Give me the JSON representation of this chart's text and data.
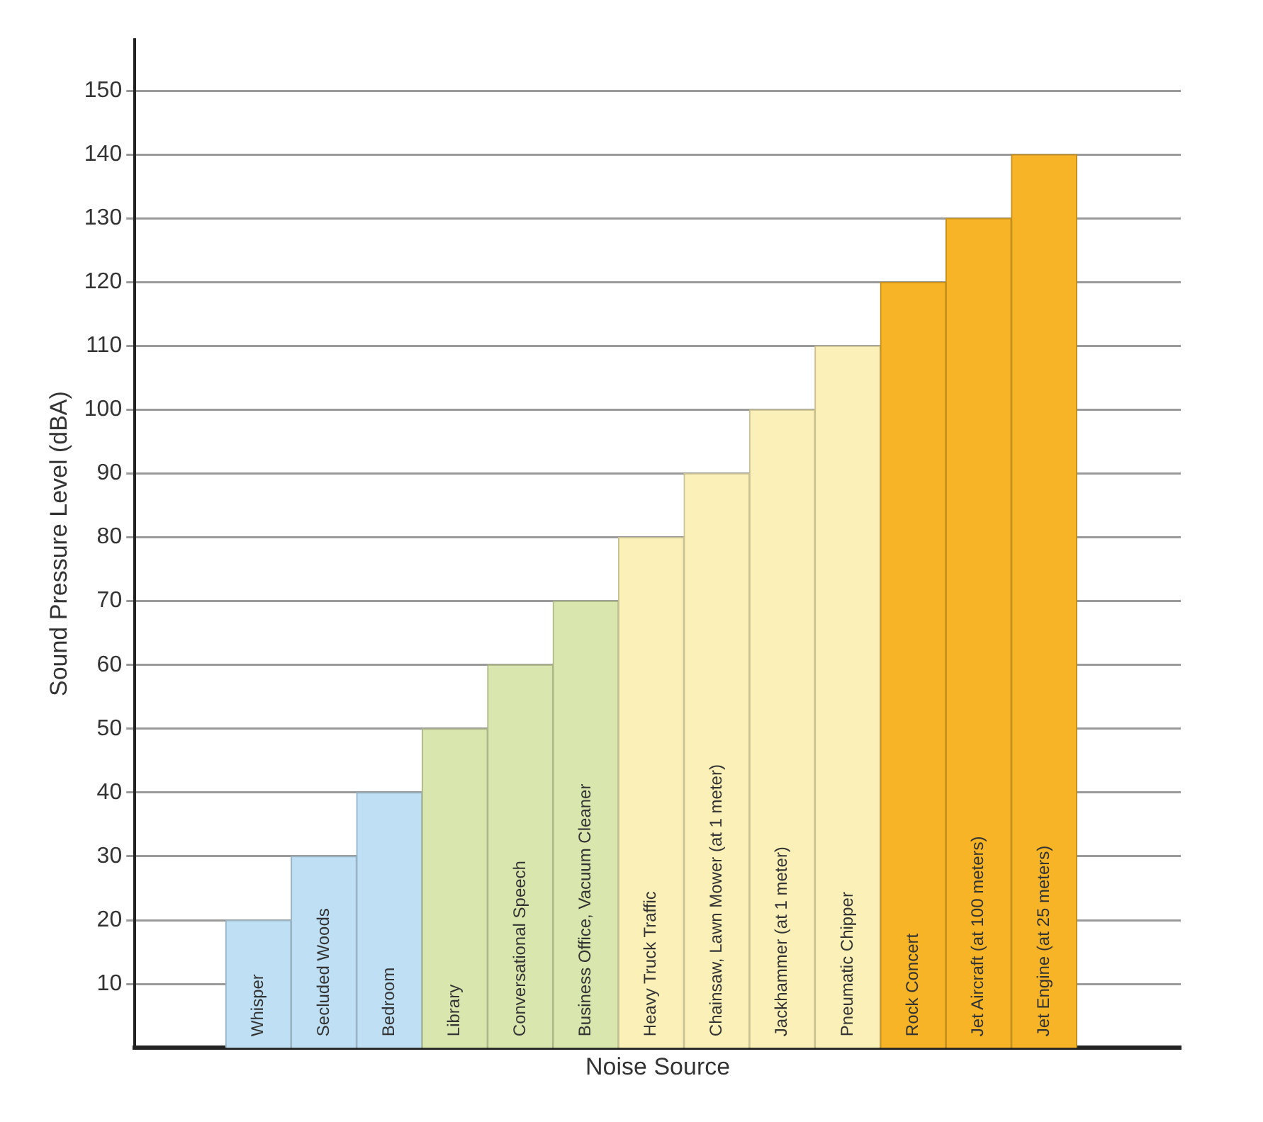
{
  "chart_data": {
    "type": "bar",
    "xlabel": "Noise Source",
    "ylabel": "Sound Pressure Level (dBA)",
    "categories": [
      "Whisper",
      "Secluded Woods",
      "Bedroom",
      "Library",
      "Conversational Speech",
      "Business Office, Vacuum Cleaner",
      "Heavy Truck Traffic",
      "Chainsaw, Lawn Mower (at 1 meter)",
      "Jackhammer (at 1 meter)",
      "Pneumatic Chipper",
      "Rock Concert",
      "Jet Aircraft (at 100 meters)",
      "Jet Engine (at 25 meters)"
    ],
    "values": [
      20,
      30,
      40,
      50,
      60,
      70,
      80,
      90,
      100,
      110,
      120,
      130,
      140
    ],
    "colors": [
      "#bfe0f4",
      "#bfe0f4",
      "#bfe0f4",
      "#d9e6ad",
      "#d9e6ad",
      "#d9e6ad",
      "#fbf0b8",
      "#fbf0b8",
      "#fbf0b8",
      "#fbf0b8",
      "#f6b426",
      "#f6b426",
      "#f6b426"
    ],
    "ylim": [
      0,
      158
    ],
    "yticks": [
      10,
      20,
      30,
      40,
      50,
      60,
      70,
      80,
      90,
      100,
      110,
      120,
      130,
      140,
      150
    ],
    "grid": "y"
  }
}
